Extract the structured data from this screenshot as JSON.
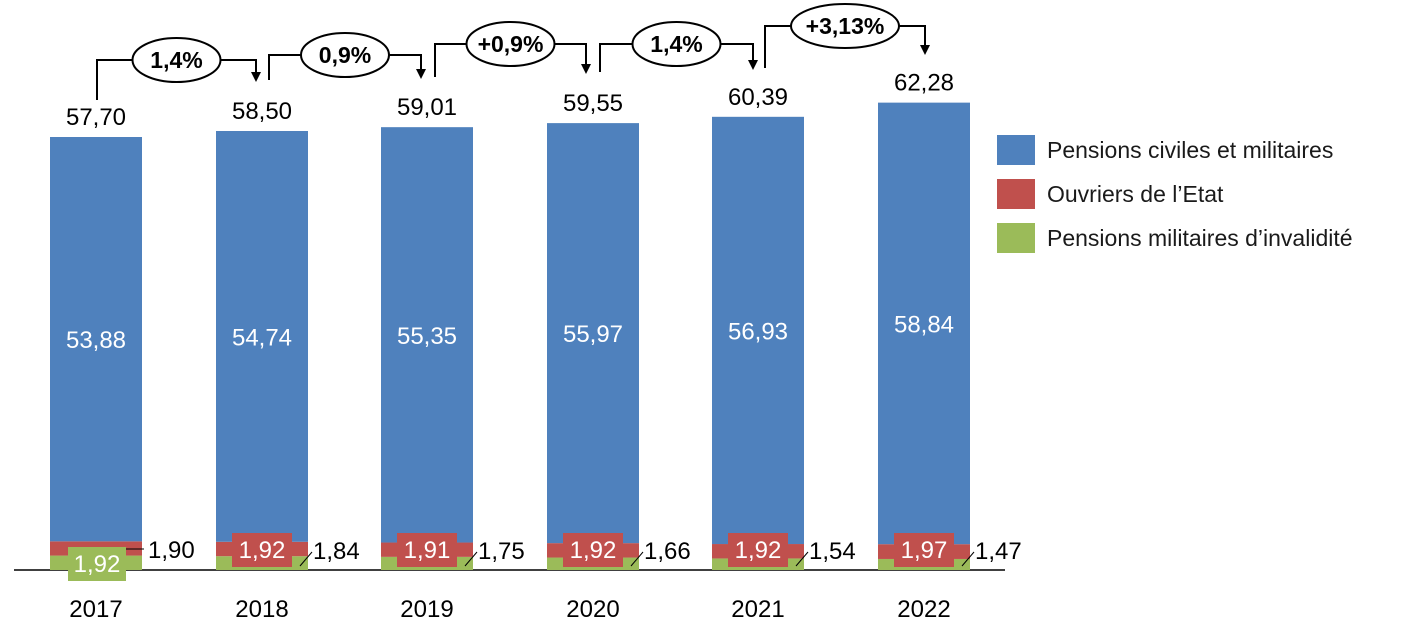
{
  "chart_data": {
    "type": "stacked-bar",
    "categories": [
      "2017",
      "2018",
      "2019",
      "2020",
      "2021",
      "2022"
    ],
    "series": [
      {
        "name": "Pensions militaires d’invalidité",
        "color": "#9BBB59",
        "values": [
          1.92,
          1.84,
          1.75,
          1.66,
          1.54,
          1.47
        ],
        "labels": [
          "1,92",
          "1,84",
          "1,75",
          "1,66",
          "1,54",
          "1,47"
        ]
      },
      {
        "name": "Ouvriers de l’Etat",
        "color": "#C0504D",
        "values": [
          1.9,
          1.92,
          1.91,
          1.92,
          1.92,
          1.97
        ],
        "labels": [
          "1,90",
          "1,92",
          "1,91",
          "1,92",
          "1,92",
          "1,97"
        ]
      },
      {
        "name": "Pensions civiles et militaires",
        "color": "#4F81BD",
        "values": [
          53.88,
          54.74,
          55.35,
          55.97,
          56.93,
          58.84
        ],
        "labels": [
          "53,88",
          "54,74",
          "55,35",
          "55,97",
          "56,93",
          "58,84"
        ]
      }
    ],
    "totals": [
      57.7,
      58.5,
      59.01,
      59.55,
      60.39,
      62.28
    ],
    "total_labels": [
      "57,70",
      "58,50",
      "59,01",
      "59,55",
      "60,39",
      "62,28"
    ],
    "growth_labels": [
      "1,4%",
      "0,9%",
      "+0,9%",
      "1,4%",
      "+3,13%"
    ],
    "legend": [
      "Pensions civiles et militaires",
      "Ouvriers de l’Etat",
      "Pensions militaires d’invalidité"
    ],
    "legend_colors": [
      "#4F81BD",
      "#C0504D",
      "#9BBB59"
    ],
    "legend_position": "right",
    "grid": false
  }
}
